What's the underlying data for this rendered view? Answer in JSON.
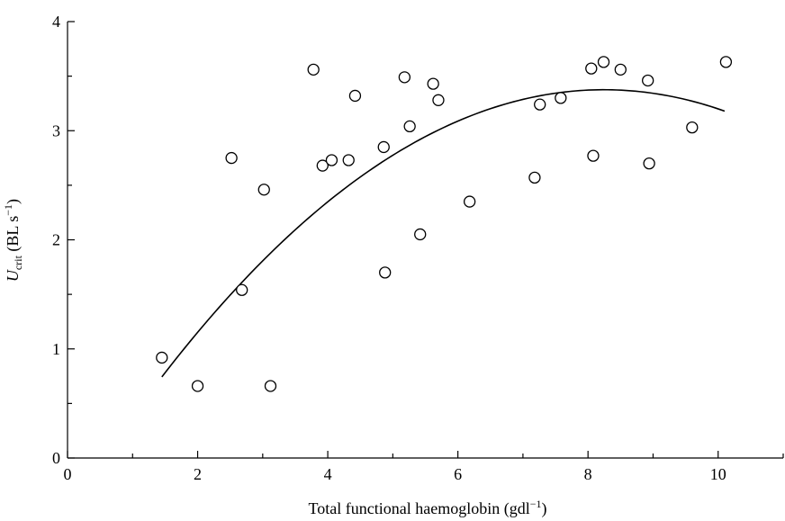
{
  "chart_data": {
    "type": "scatter",
    "xlabel": "Total functional haemoglobin (gdl",
    "xlabel_sup": "−1",
    "xlabel_end": ")",
    "ylabel_main": "U",
    "ylabel_sub": "crit",
    "ylabel_unit": " (BL s",
    "ylabel_sup": "−1",
    "ylabel_end": ")",
    "xlim": [
      0,
      11
    ],
    "ylim": [
      0,
      4
    ],
    "x_ticks": [
      0,
      2,
      4,
      6,
      8,
      10
    ],
    "y_ticks": [
      0,
      1,
      2,
      3,
      4
    ],
    "grid": false,
    "colors": {
      "axis": "#000000",
      "marker": "#000000",
      "fit": "#000000"
    },
    "points": [
      {
        "x": 1.45,
        "y": 0.92
      },
      {
        "x": 2.0,
        "y": 0.66
      },
      {
        "x": 2.52,
        "y": 2.75
      },
      {
        "x": 2.68,
        "y": 1.54
      },
      {
        "x": 3.02,
        "y": 2.46
      },
      {
        "x": 3.12,
        "y": 0.66
      },
      {
        "x": 3.78,
        "y": 3.56
      },
      {
        "x": 3.92,
        "y": 2.68
      },
      {
        "x": 4.06,
        "y": 2.73
      },
      {
        "x": 4.32,
        "y": 2.73
      },
      {
        "x": 4.42,
        "y": 3.32
      },
      {
        "x": 4.86,
        "y": 2.85
      },
      {
        "x": 4.88,
        "y": 1.7
      },
      {
        "x": 5.18,
        "y": 3.49
      },
      {
        "x": 5.26,
        "y": 3.04
      },
      {
        "x": 5.42,
        "y": 2.05
      },
      {
        "x": 5.62,
        "y": 3.43
      },
      {
        "x": 5.7,
        "y": 3.28
      },
      {
        "x": 6.18,
        "y": 2.35
      },
      {
        "x": 7.18,
        "y": 2.57
      },
      {
        "x": 7.26,
        "y": 3.24
      },
      {
        "x": 7.58,
        "y": 3.3
      },
      {
        "x": 8.05,
        "y": 3.57
      },
      {
        "x": 8.08,
        "y": 2.77
      },
      {
        "x": 8.24,
        "y": 3.63
      },
      {
        "x": 8.5,
        "y": 3.56
      },
      {
        "x": 8.92,
        "y": 3.46
      },
      {
        "x": 8.94,
        "y": 2.7
      },
      {
        "x": 9.6,
        "y": 3.03
      },
      {
        "x": 10.12,
        "y": 3.63
      }
    ],
    "fit_curve": {
      "type": "quadratic",
      "x_range": [
        1.45,
        10.1
      ],
      "coefficients": [
        -0.5,
        0.94,
        -0.057
      ]
    }
  }
}
